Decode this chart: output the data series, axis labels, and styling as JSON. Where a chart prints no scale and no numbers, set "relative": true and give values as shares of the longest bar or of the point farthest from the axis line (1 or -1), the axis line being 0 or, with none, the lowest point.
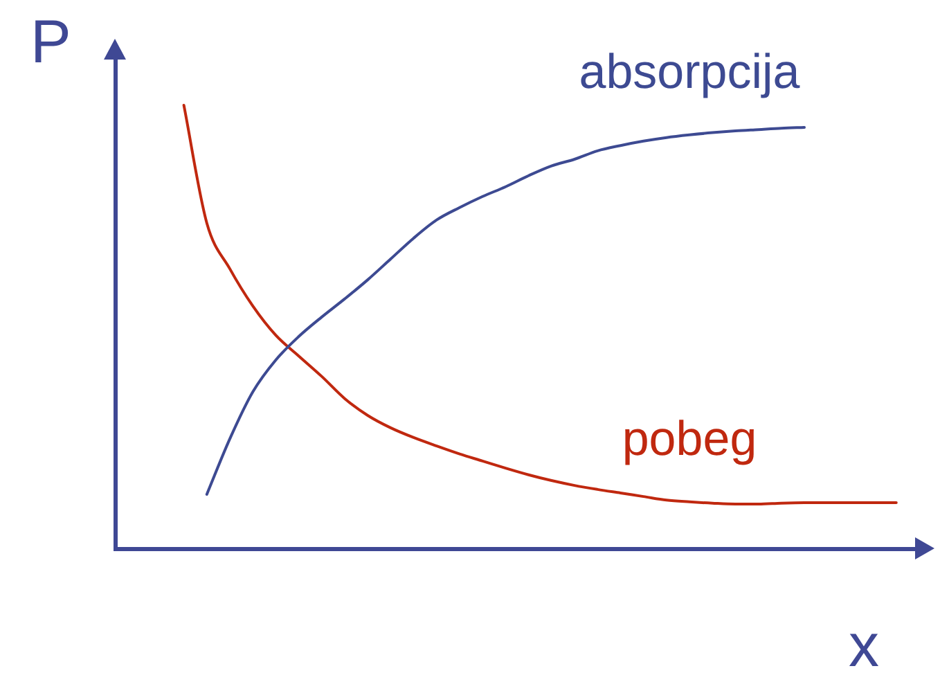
{
  "chart_data": {
    "type": "line",
    "xlabel": "x",
    "ylabel": "P",
    "relative": true,
    "marker": "none",
    "line_style": "solid",
    "categories": [
      null,
      null,
      null,
      null,
      null,
      null,
      null,
      null,
      null,
      null,
      null,
      null,
      null,
      null,
      null,
      null,
      null,
      null,
      null,
      null,
      null,
      null,
      null,
      null,
      null,
      null,
      null,
      null,
      null,
      null,
      null,
      null,
      null,
      null,
      null,
      null
    ],
    "series": [
      {
        "name": "absorpcija",
        "color": "#3d4a92",
        "values": [
          null,
          null,
          null,
          null,
          0.122,
          0.247,
          0.353,
          0.425,
          0.478,
          0.522,
          0.563,
          0.606,
          0.653,
          0.7,
          0.741,
          0.769,
          0.794,
          0.816,
          0.841,
          0.863,
          0.878,
          0.897,
          0.909,
          0.919,
          0.927,
          0.933,
          0.938,
          0.942,
          0.945,
          0.948,
          0.95,
          null,
          null,
          null,
          null,
          null
        ]
      },
      {
        "name": "pobeg",
        "color": "#c0280f",
        "values": [
          null,
          null,
          null,
          1,
          0.734,
          0.631,
          0.547,
          0.481,
          0.434,
          0.388,
          0.338,
          0.3,
          0.272,
          0.25,
          0.231,
          0.213,
          0.197,
          0.181,
          0.166,
          0.153,
          0.142,
          0.133,
          0.125,
          0.117,
          0.109,
          0.105,
          0.102,
          0.1,
          0.1,
          0.102,
          0.103,
          0.103,
          0.103,
          0.103,
          0.103,
          null
        ]
      }
    ]
  }
}
